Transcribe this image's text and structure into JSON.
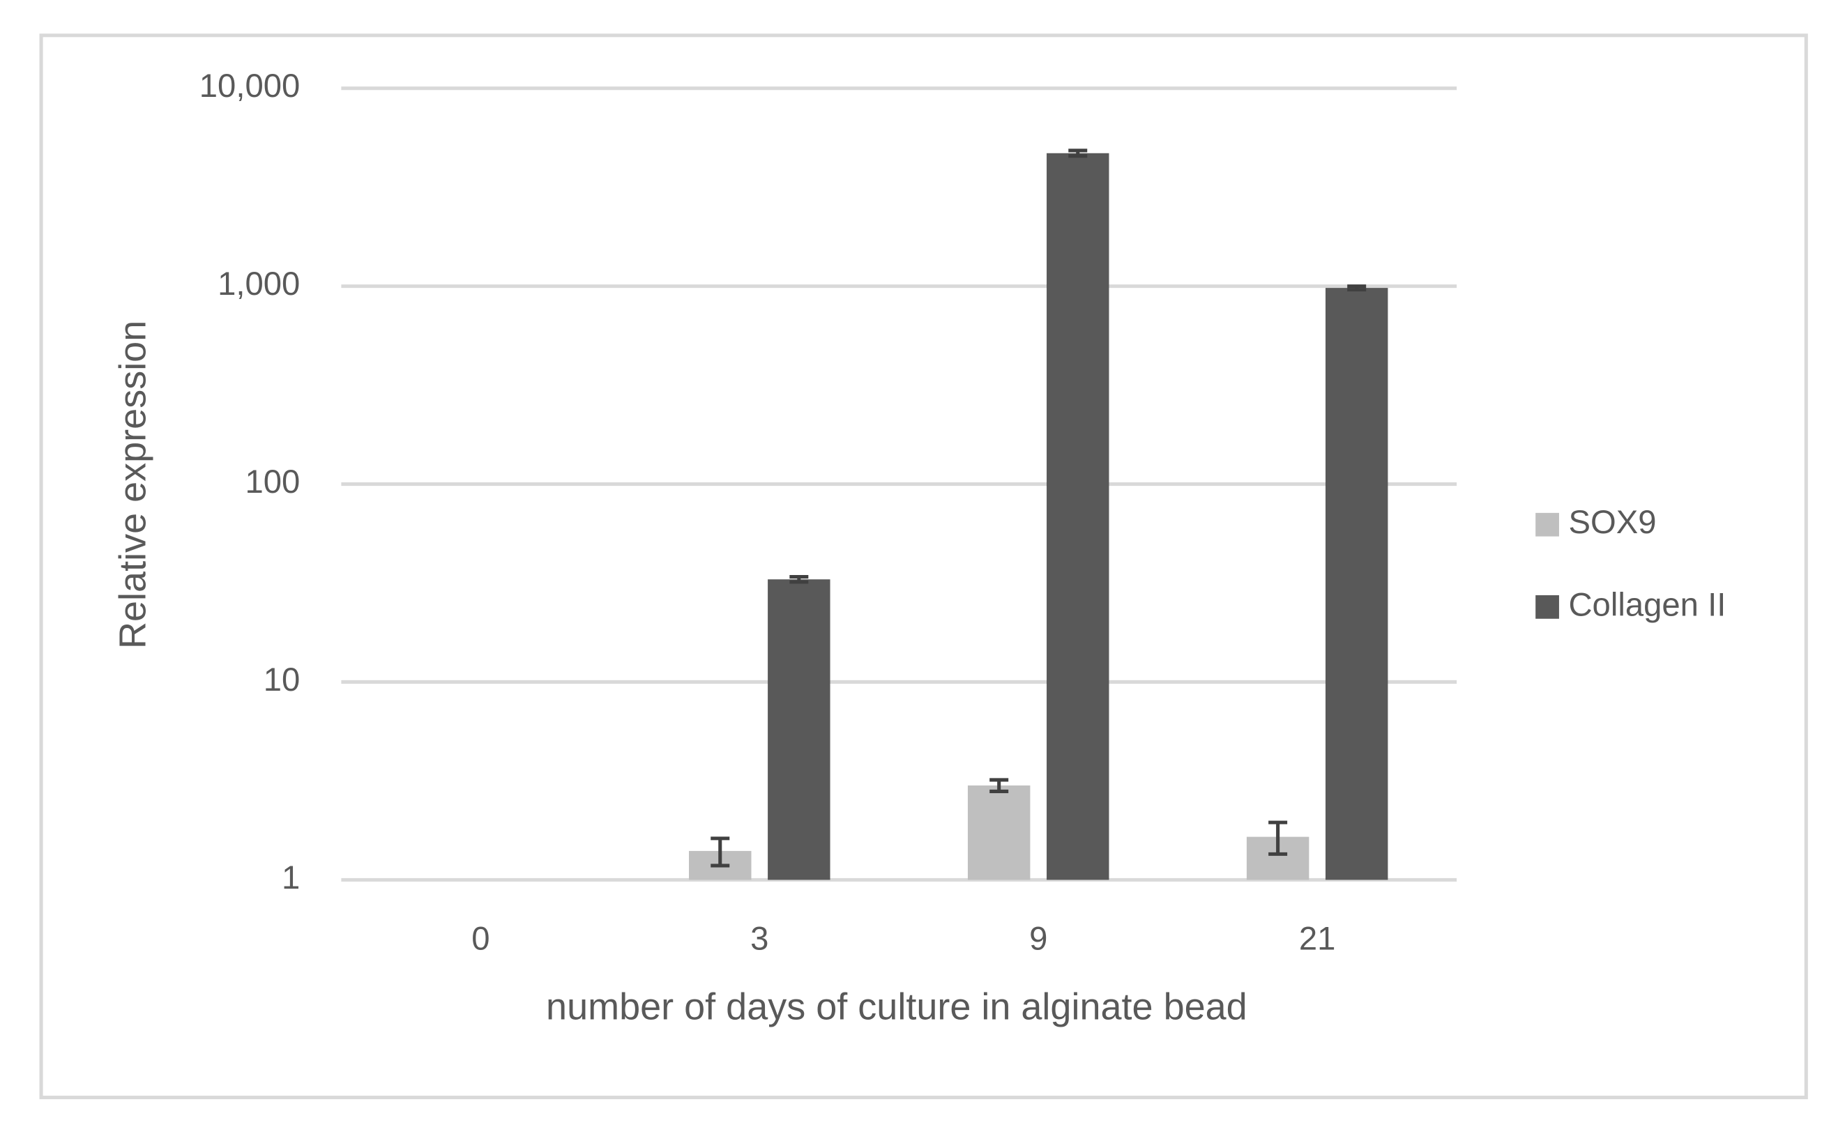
{
  "chart_data": {
    "type": "bar",
    "x_label": "number of days of culture in alginate bead",
    "y_label": "Relative expression",
    "categories": [
      "0",
      "3",
      "9",
      "21"
    ],
    "series": [
      {
        "name": "SOX9",
        "color": "#bfbfbf",
        "values": [
          1,
          1.4,
          3.0,
          1.65
        ],
        "errors": [
          0,
          0.22,
          0.2,
          0.3
        ]
      },
      {
        "name": "Collagen II",
        "color": "#595959",
        "values": [
          1,
          33,
          4700,
          980
        ],
        "errors": [
          0,
          1,
          150,
          20
        ]
      }
    ],
    "ylim": [
      1,
      10000
    ],
    "log_scale": true,
    "yticks": [
      {
        "value": 1,
        "label": "1"
      },
      {
        "value": 10,
        "label": "10"
      },
      {
        "value": 100,
        "label": "100"
      },
      {
        "value": 1000,
        "label": "1,000"
      },
      {
        "value": 10000,
        "label": "10,000"
      }
    ],
    "grid": true,
    "legend": "right"
  }
}
